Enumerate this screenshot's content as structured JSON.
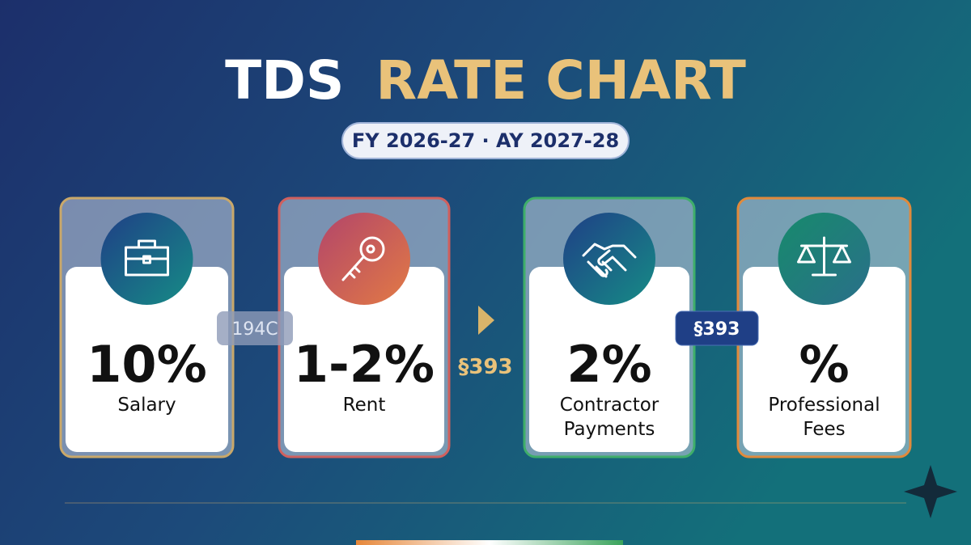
{
  "header": {
    "title_white": "TDS",
    "title_gold": "RATE CHART",
    "subtitle": "FY 2026-27 · AY 2027-28"
  },
  "cards": [
    {
      "rate": "10%",
      "label": [
        "Salary"
      ],
      "accent": "#c9a86a"
    },
    {
      "rate": "1-2%",
      "label": [
        "Rent"
      ],
      "accent": "#d0605e"
    },
    {
      "rate": "2%",
      "label": [
        "Contractor",
        "Payments"
      ],
      "accent": "#3fae6a"
    },
    {
      "rate": "%",
      "label": [
        "Professional",
        "Fees"
      ],
      "accent": "#e08a3c"
    }
  ],
  "badges": {
    "left": "194C",
    "middle": "§393",
    "right": "§393"
  }
}
